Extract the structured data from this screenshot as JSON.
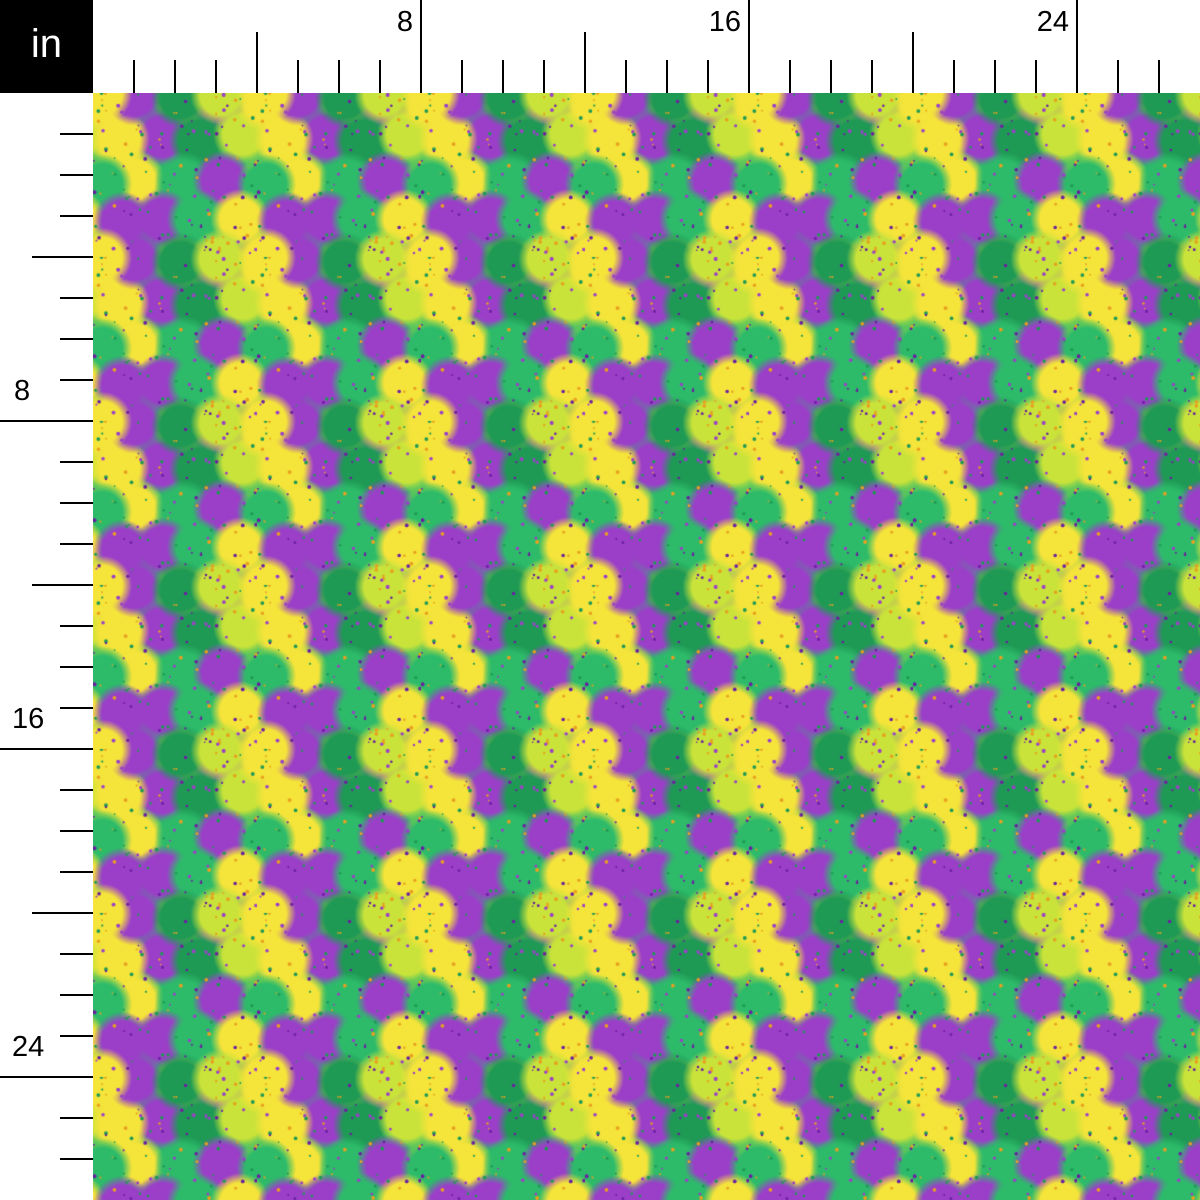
{
  "ruler": {
    "unit_label": "in",
    "top_labels": [
      "8",
      "16",
      "24"
    ],
    "left_labels": [
      "8",
      "16",
      "24"
    ]
  },
  "swatch": {
    "description_colors": {
      "purple": "#9b3fc9",
      "green": "#2dbb6a",
      "yellow": "#f5e43a",
      "lime": "#c9e33a",
      "dark_green": "#1f9a55"
    }
  }
}
